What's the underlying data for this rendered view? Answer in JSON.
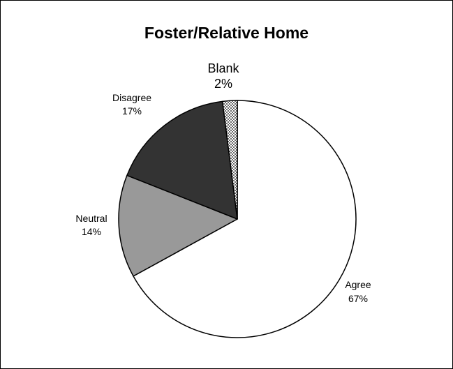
{
  "chart_data": {
    "type": "pie",
    "title": "Foster/Relative Home",
    "slices": [
      {
        "label": "Agree",
        "percent_label": "67%",
        "value": 67,
        "color": "#ffffff",
        "pattern": "none"
      },
      {
        "label": "Neutral",
        "percent_label": "14%",
        "value": 14,
        "color": "#999999",
        "pattern": "none"
      },
      {
        "label": "Disagree",
        "percent_label": "17%",
        "value": 17,
        "color": "#333333",
        "pattern": "none"
      },
      {
        "label": "Blank",
        "percent_label": "2%",
        "value": 2,
        "color": "#ffffff",
        "pattern": "dots"
      }
    ],
    "start_angle_deg": 0,
    "direction": "clockwise",
    "legend": "none",
    "grid": false
  }
}
